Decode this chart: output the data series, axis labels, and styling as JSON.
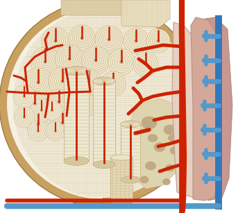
{
  "bone_light": "#f5f0e0",
  "bone_cream": "#ede0c0",
  "bone_tan": "#d4b896",
  "bone_dark": "#c8a870",
  "bone_outer": "#c8a060",
  "lamella_line": "#c8b080",
  "cylinder_fill": "#ede5c8",
  "cylinder_shade": "#d8cba8",
  "spongy_fill": "#ddd5b0",
  "spongy_hole": "#c8b090",
  "periosteum_outer": "#d4a898",
  "periosteum_inner": "#e0c0b0",
  "soft_tissue": "#c8a0a0",
  "soft_tissue2": "#d4b0a8",
  "red_vessel": "#cc2200",
  "blue_vessel": "#5599cc",
  "hatch_color": "#c8b080",
  "top_face": "#ddd0a8",
  "top_face2": "#e8dfc0",
  "outer_ring": "#c8a060"
}
